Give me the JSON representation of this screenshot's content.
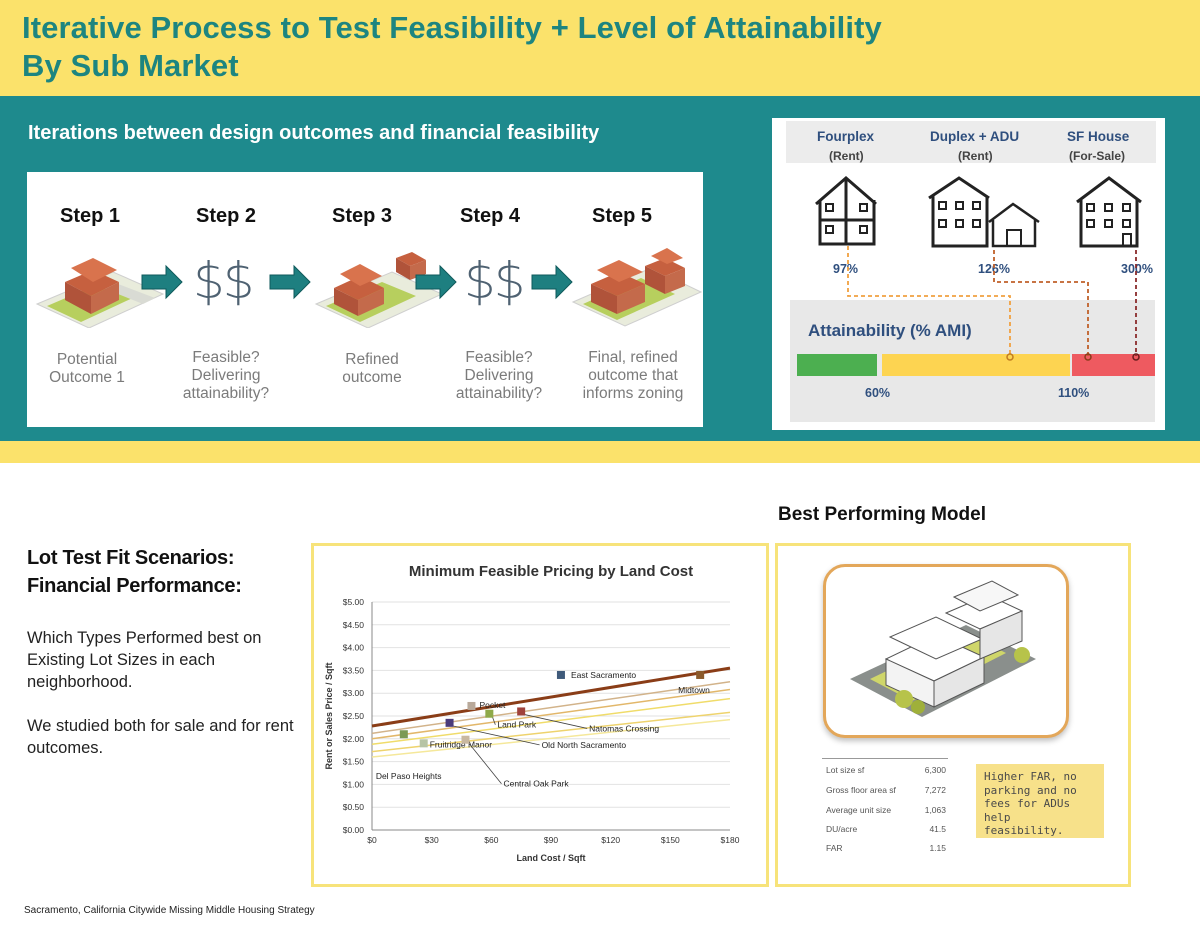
{
  "header": {
    "title_line1": "Iterative Process to Test Feasibility + Level of Attainability",
    "title_line2": "By Sub Market"
  },
  "iterations": {
    "title": "Iterations between design outcomes and financial feasibility",
    "steps": [
      {
        "label": "Step 1",
        "caption_lines": [
          "Potential",
          "Outcome 1"
        ],
        "visual": "house-icon"
      },
      {
        "label": "Step 2",
        "caption_lines": [
          "Feasible?",
          "Delivering",
          "attainability?"
        ],
        "visual": "$$"
      },
      {
        "label": "Step 3",
        "caption_lines": [
          "Refined",
          "outcome"
        ],
        "visual": "house-with-adu-icon"
      },
      {
        "label": "Step 4",
        "caption_lines": [
          "Feasible?",
          "Delivering",
          "attainability?"
        ],
        "visual": "$$"
      },
      {
        "label": "Step 5",
        "caption_lines": [
          "Final, refined",
          "outcome that",
          "informs zoning"
        ],
        "visual": "house-final-icon"
      }
    ]
  },
  "attainability": {
    "types": [
      {
        "name": "Fourplex",
        "sub": "(Rent)",
        "pct": "97%"
      },
      {
        "name": "Duplex + ADU",
        "sub": "(Rent)",
        "pct": "126%"
      },
      {
        "name": "SF House",
        "sub": "(For-Sale)",
        "pct": "300%"
      }
    ],
    "label": "Attainability (% AMI)",
    "thresholds": [
      "60%",
      "110%"
    ],
    "colors": {
      "low": "#4caf50",
      "mid": "#fdd451",
      "high": "#ee5a60"
    }
  },
  "lower": {
    "heading_line1": "Lot Test Fit Scenarios:",
    "heading_line2": "Financial Performance:",
    "para1": "Which Types Performed best on Existing Lot Sizes in each neighborhood.",
    "para2": "We studied both for sale and for rent outcomes."
  },
  "chart_data": {
    "type": "scatter",
    "title": "Minimum Feasible Pricing by Land Cost",
    "xlabel": "Land Cost / Sqft",
    "ylabel": "Rent or Sales Price / Sqft",
    "xlim": [
      0,
      180
    ],
    "ylim": [
      0,
      5
    ],
    "x_ticks": [
      "$0",
      "$30",
      "$60",
      "$90",
      "$120",
      "$150",
      "$180"
    ],
    "y_ticks": [
      "$0.00",
      "$0.50",
      "$1.00",
      "$1.50",
      "$2.00",
      "$2.50",
      "$3.00",
      "$3.50",
      "$4.00",
      "$4.50",
      "$5.00"
    ],
    "points": [
      {
        "name": "East Sacramento",
        "x": 95,
        "y": 3.4,
        "color": "#3f5a7a"
      },
      {
        "name": "Midtown",
        "x": 165,
        "y": 3.4,
        "color": "#8b5a2b"
      },
      {
        "name": "Pocket",
        "x": 50,
        "y": 2.72,
        "color": "#b9a99a"
      },
      {
        "name": "Land Park",
        "x": 59,
        "y": 2.55,
        "color": "#8faa4a"
      },
      {
        "name": "Natomas Crossing",
        "x": 75,
        "y": 2.6,
        "color": "#a0423b"
      },
      {
        "name": "Old North Sacramento",
        "x": 39,
        "y": 2.35,
        "color": "#4b3b7a"
      },
      {
        "name": "Fruitridge Manor",
        "x": 26,
        "y": 1.9,
        "color": "#b7c4a5"
      },
      {
        "name": "Central Oak Park",
        "x": 47,
        "y": 1.98,
        "color": "#c9b8a0"
      },
      {
        "name": "Del Paso Heights",
        "x": 16,
        "y": 2.1,
        "color": "#7c9a55"
      }
    ],
    "trend_lines": [
      {
        "x0": 0,
        "y0": 2.28,
        "x1": 180,
        "y1": 3.55,
        "color": "#8a3d17",
        "width": 3
      },
      {
        "x0": 0,
        "y0": 2.12,
        "x1": 180,
        "y1": 3.25,
        "color": "#d2b38a",
        "width": 1.5
      },
      {
        "x0": 0,
        "y0": 2.0,
        "x1": 180,
        "y1": 3.08,
        "color": "#e2b76a",
        "width": 1.5
      },
      {
        "x0": 0,
        "y0": 1.88,
        "x1": 180,
        "y1": 2.88,
        "color": "#f0dc6a",
        "width": 1.5
      },
      {
        "x0": 0,
        "y0": 1.72,
        "x1": 180,
        "y1": 2.58,
        "color": "#eed36d",
        "width": 1.5
      },
      {
        "x0": 0,
        "y0": 1.6,
        "x1": 180,
        "y1": 2.42,
        "color": "#f5e89a",
        "width": 1.5
      }
    ]
  },
  "model": {
    "title": "Best Performing Model",
    "stats": [
      {
        "label": "Lot size sf",
        "value": "6,300"
      },
      {
        "label": "Gross floor area sf",
        "value": "7,272"
      },
      {
        "label": "Average unit size",
        "value": "1,063"
      },
      {
        "label": "DU/acre",
        "value": "41.5"
      },
      {
        "label": "FAR",
        "value": "1.15"
      }
    ],
    "note": "Higher FAR, no parking and no fees for ADUs help feasibility."
  },
  "footer": "Sacramento, California Citywide Missing Middle Housing Strategy"
}
